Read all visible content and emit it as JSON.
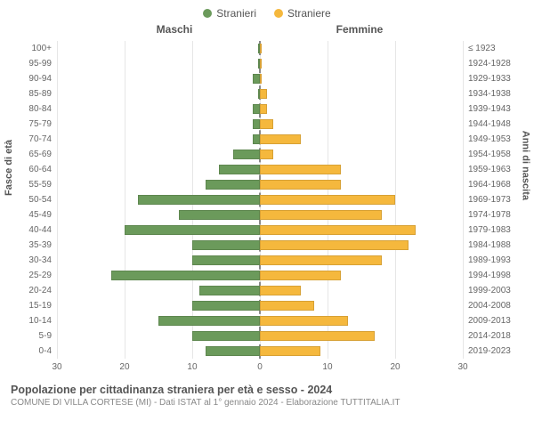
{
  "legend": {
    "male": {
      "label": "Stranieri",
      "color": "#6b9a5b"
    },
    "female": {
      "label": "Straniere",
      "color": "#f5b83d"
    }
  },
  "headers": {
    "left": "Maschi",
    "right": "Femmine"
  },
  "yaxis_left": {
    "title": "Fasce di età"
  },
  "yaxis_right": {
    "title": "Anni di nascita"
  },
  "xaxis": {
    "max": 30,
    "ticks": [
      30,
      20,
      10,
      0,
      10,
      20,
      30
    ]
  },
  "background_color": "#ffffff",
  "grid_color": "#e6e6e6",
  "rows": [
    {
      "age": "100+",
      "birth": "≤ 1923",
      "m": 0,
      "f": 0
    },
    {
      "age": "95-99",
      "birth": "1924-1928",
      "m": 0,
      "f": 0
    },
    {
      "age": "90-94",
      "birth": "1929-1933",
      "m": 1,
      "f": 0
    },
    {
      "age": "85-89",
      "birth": "1934-1938",
      "m": 0,
      "f": 1
    },
    {
      "age": "80-84",
      "birth": "1939-1943",
      "m": 1,
      "f": 1
    },
    {
      "age": "75-79",
      "birth": "1944-1948",
      "m": 1,
      "f": 2
    },
    {
      "age": "70-74",
      "birth": "1949-1953",
      "m": 1,
      "f": 6
    },
    {
      "age": "65-69",
      "birth": "1954-1958",
      "m": 4,
      "f": 2
    },
    {
      "age": "60-64",
      "birth": "1959-1963",
      "m": 6,
      "f": 12
    },
    {
      "age": "55-59",
      "birth": "1964-1968",
      "m": 8,
      "f": 12
    },
    {
      "age": "50-54",
      "birth": "1969-1973",
      "m": 18,
      "f": 20
    },
    {
      "age": "45-49",
      "birth": "1974-1978",
      "m": 12,
      "f": 18
    },
    {
      "age": "40-44",
      "birth": "1979-1983",
      "m": 20,
      "f": 23
    },
    {
      "age": "35-39",
      "birth": "1984-1988",
      "m": 10,
      "f": 22
    },
    {
      "age": "30-34",
      "birth": "1989-1993",
      "m": 10,
      "f": 18
    },
    {
      "age": "25-29",
      "birth": "1994-1998",
      "m": 22,
      "f": 12
    },
    {
      "age": "20-24",
      "birth": "1999-2003",
      "m": 9,
      "f": 6
    },
    {
      "age": "15-19",
      "birth": "2004-2008",
      "m": 10,
      "f": 8
    },
    {
      "age": "10-14",
      "birth": "2009-2013",
      "m": 15,
      "f": 13
    },
    {
      "age": "5-9",
      "birth": "2014-2018",
      "m": 10,
      "f": 17
    },
    {
      "age": "0-4",
      "birth": "2019-2023",
      "m": 8,
      "f": 9
    }
  ],
  "footer": {
    "title": "Popolazione per cittadinanza straniera per età e sesso - 2024",
    "subtitle": "COMUNE DI VILLA CORTESE (MI) - Dati ISTAT al 1° gennaio 2024 - Elaborazione TUTTITALIA.IT"
  }
}
